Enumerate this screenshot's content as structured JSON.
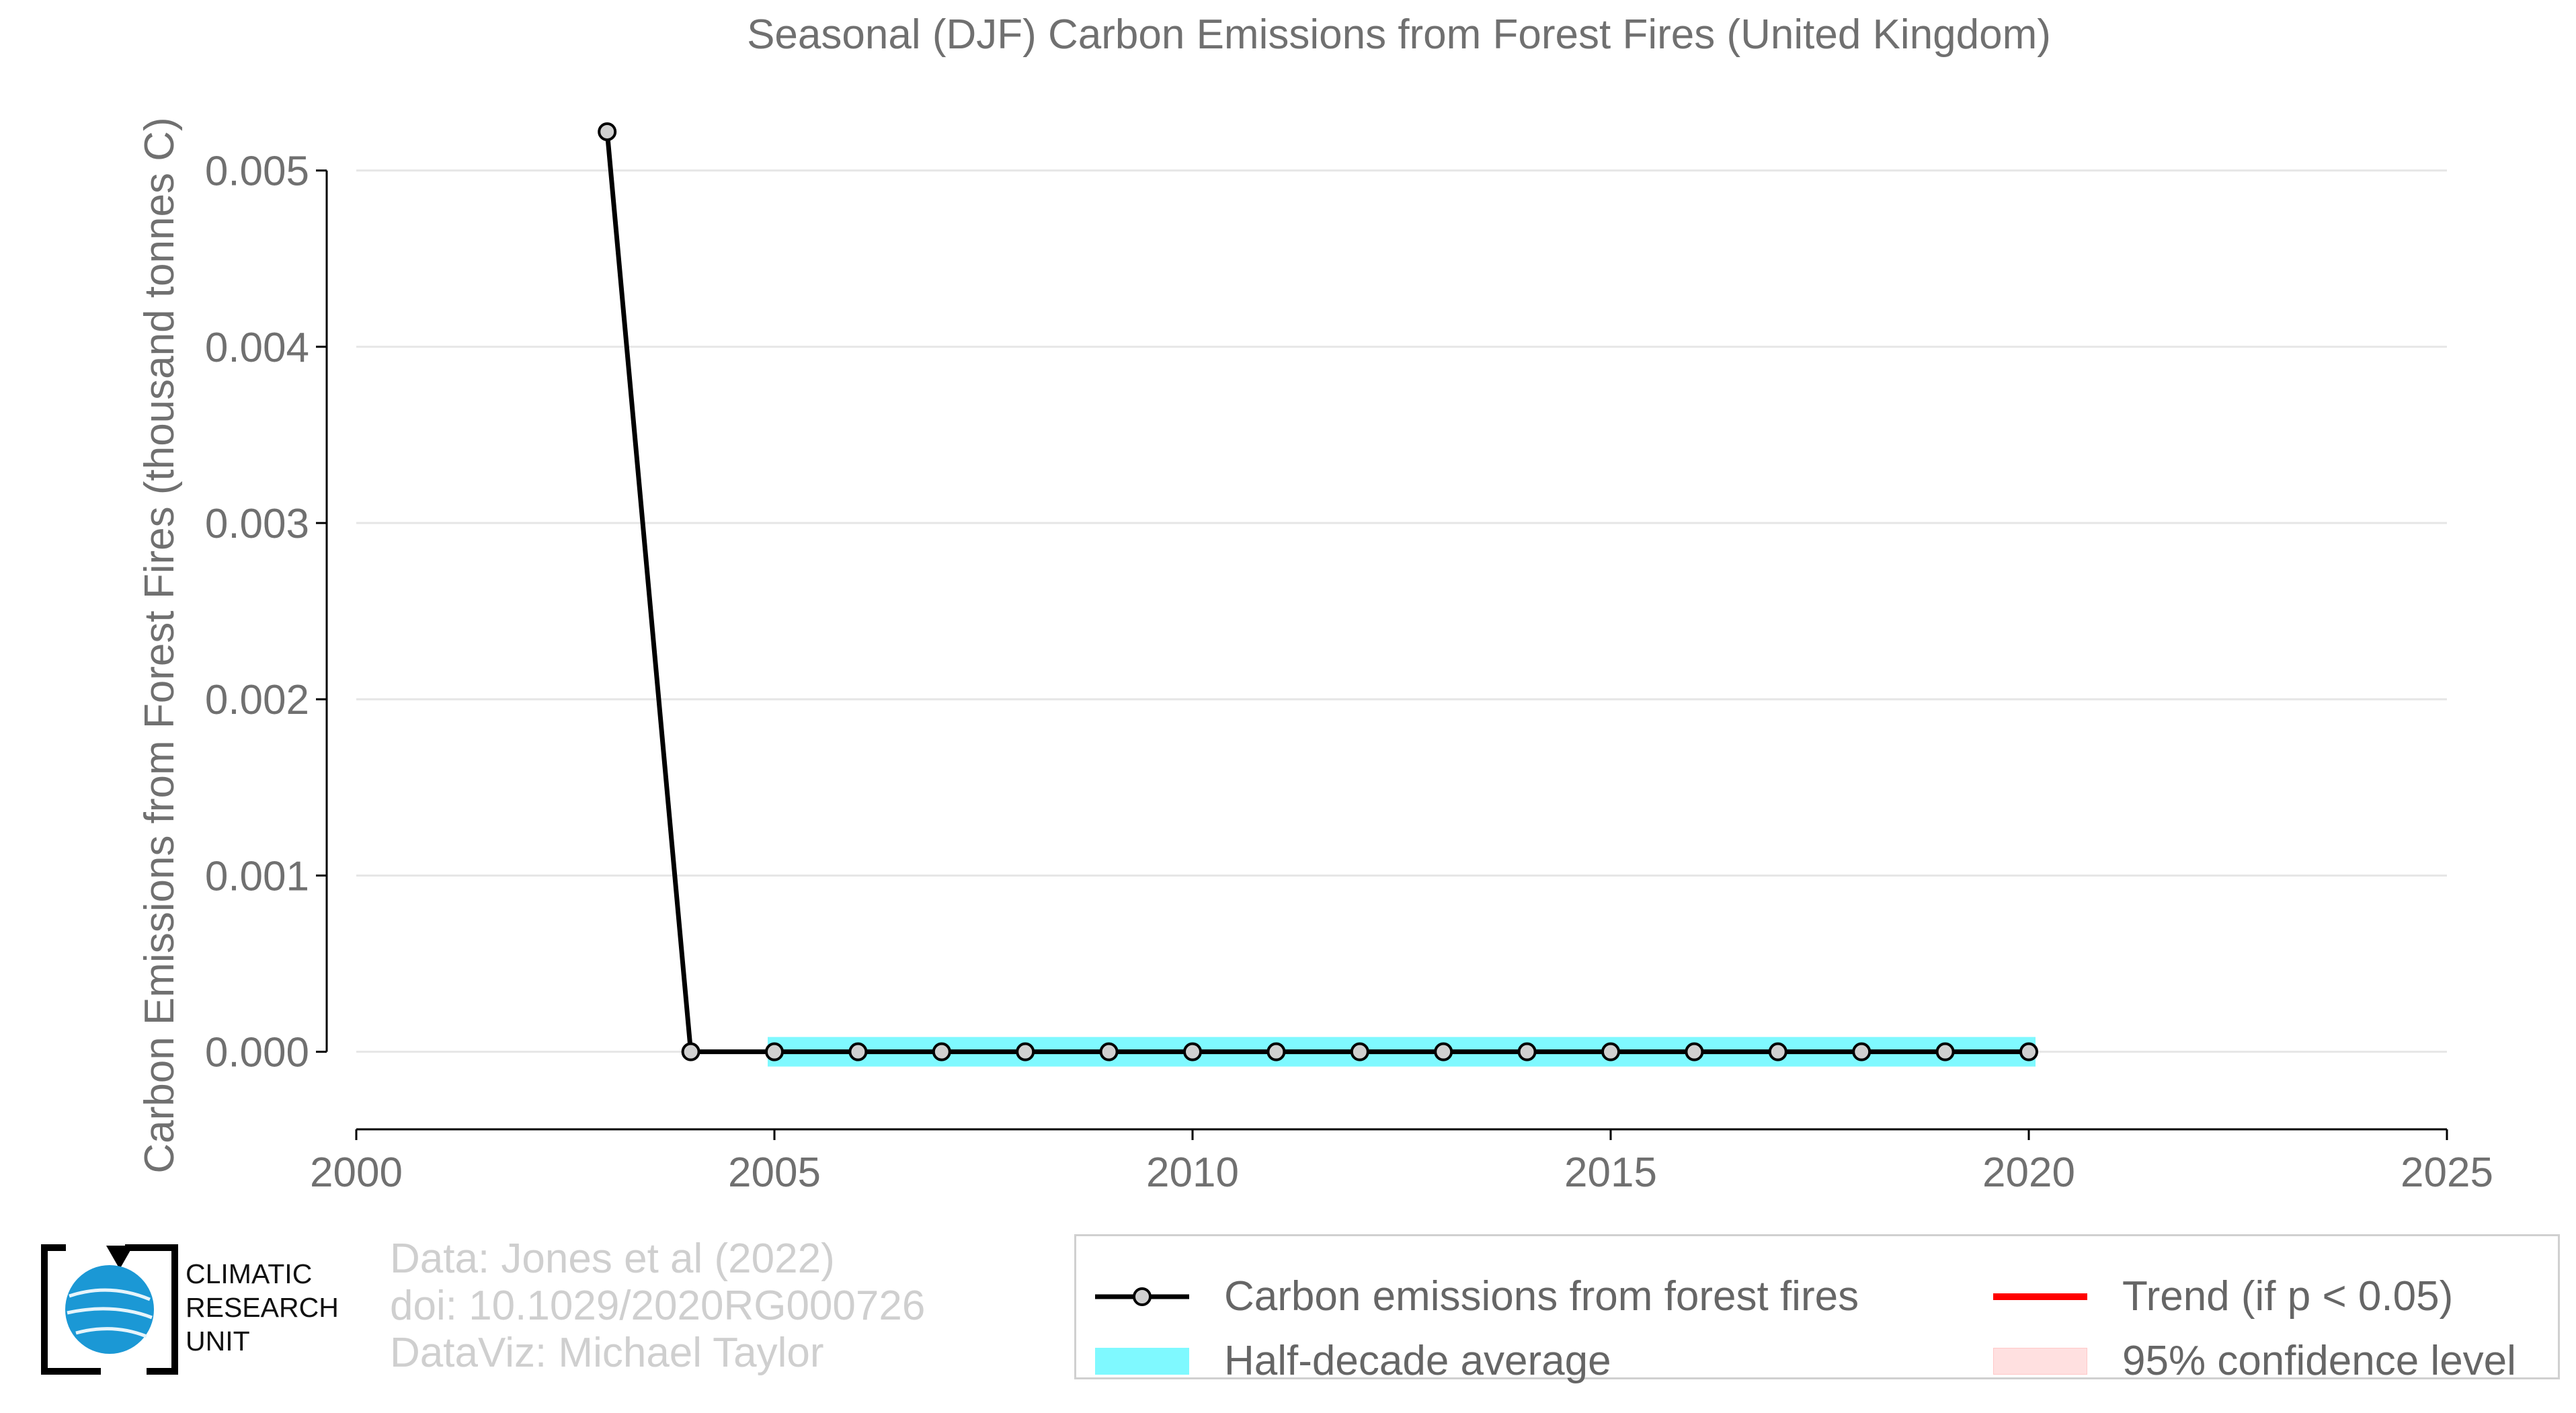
{
  "chart_data": {
    "type": "line",
    "title": "Seasonal (DJF) Carbon Emissions from Forest Fires (United Kingdom)",
    "xlabel": "",
    "ylabel": "Carbon Emissions from Forest Fires (thousand tonnes C)",
    "xlim": [
      2000,
      2025
    ],
    "ylim": [
      -0.00044,
      0.0053
    ],
    "x_ticks": [
      "2000",
      "2005",
      "2010",
      "2015",
      "2020",
      "2025"
    ],
    "y_ticks": [
      "0.000",
      "0.001",
      "0.002",
      "0.003",
      "0.004",
      "0.005"
    ],
    "grid": "horizontal",
    "series": [
      {
        "name": "Carbon emissions from forest fires",
        "color": "#000000",
        "x": [
          2003,
          2004,
          2005,
          2006,
          2007,
          2008,
          2009,
          2010,
          2011,
          2012,
          2013,
          2014,
          2015,
          2016,
          2017,
          2018,
          2019,
          2020
        ],
        "y": [
          0.00522,
          0,
          0,
          0,
          0,
          0,
          0,
          0,
          0,
          0,
          0,
          0,
          0,
          0,
          0,
          0,
          0,
          0
        ]
      },
      {
        "name": "Half-decade average",
        "color": "#7ff9ff",
        "x": [
          2005,
          2020
        ],
        "y": [
          0,
          0
        ]
      }
    ],
    "legend": {
      "position": "bottom-right",
      "entries": [
        {
          "label": "Carbon emissions from forest fires",
          "color": "#000000"
        },
        {
          "label": "Trend (if p < 0.05)",
          "color": "#ff0000"
        },
        {
          "label": "Half-decade average",
          "color": "#7ff9ff"
        },
        {
          "label": "95% confidence level",
          "color": "#ffe0e0"
        }
      ]
    }
  },
  "credits": {
    "line1": "Data: Jones et al (2022)",
    "line2": "doi: 10.1029/2020RG000726",
    "line3": "DataViz: Michael Taylor"
  },
  "logo": {
    "line1": "CLIMATIC",
    "line2": "RESEARCH",
    "line3": "UNIT"
  }
}
